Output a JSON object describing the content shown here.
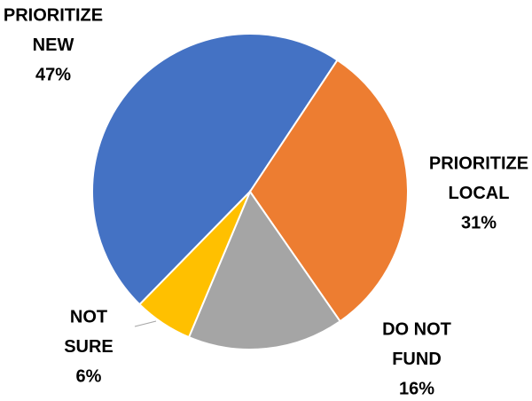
{
  "chart_data": {
    "type": "pie",
    "categories": [
      [
        "PRIORITIZE",
        "NEW"
      ],
      [
        "PRIORITIZE",
        "LOCAL"
      ],
      [
        "DO NOT",
        "FUND"
      ],
      [
        "NOT",
        "SURE"
      ]
    ],
    "values": [
      47,
      31,
      16,
      6
    ],
    "value_labels": [
      "47%",
      "31%",
      "16%",
      "6%"
    ],
    "colors": [
      "#4472c4",
      "#ed7d31",
      "#a5a5a5",
      "#ffc000"
    ]
  }
}
